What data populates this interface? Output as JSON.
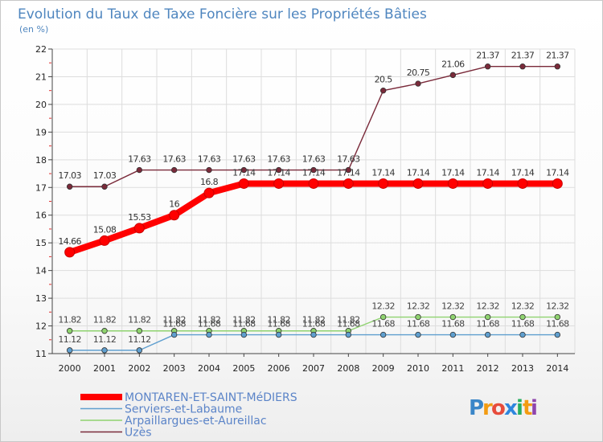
{
  "chart_data": {
    "type": "line",
    "title": "Evolution du Taux de Taxe Foncière sur les Propriétés Bâties",
    "subtitle": "(en %)",
    "xlabel": "",
    "ylabel": "",
    "ylim": [
      11,
      22
    ],
    "yticks": [
      "11",
      "12",
      "13",
      "14",
      "15",
      "16",
      "17",
      "18",
      "19",
      "20",
      "21",
      "22"
    ],
    "categories": [
      "2000",
      "2001",
      "2002",
      "2003",
      "2004",
      "2005",
      "2006",
      "2007",
      "2008",
      "2009",
      "2010",
      "2011",
      "2012",
      "2013",
      "2014"
    ],
    "grid": true,
    "legend_position": "bottom-left",
    "series": [
      {
        "name": "MONTAREN-ET-SAINT-MéDIERS",
        "color": "#ff0000",
        "values": [
          14.66,
          15.08,
          15.53,
          16,
          16.8,
          17.14,
          17.14,
          17.14,
          17.14,
          17.14,
          17.14,
          17.14,
          17.14,
          17.14,
          17.14
        ],
        "labels": [
          "14.66",
          "15.08",
          "15.53",
          "16",
          "16.8",
          "17.14",
          "17.14",
          "17.14",
          "17.14",
          "17.14",
          "17.14",
          "17.14",
          "17.14",
          "17.14",
          "17.14"
        ]
      },
      {
        "name": "Serviers-et-Labaume",
        "color": "#5f9fcf",
        "values": [
          11.12,
          11.12,
          11.12,
          11.68,
          11.68,
          11.68,
          11.68,
          11.68,
          11.68,
          11.68,
          11.68,
          11.68,
          11.68,
          11.68,
          11.68
        ],
        "labels": [
          "11.12",
          "11.12",
          "11.12",
          "11.68",
          "11.68",
          "11.68",
          "11.68",
          "11.68",
          "11.68",
          "11.68",
          "11.68",
          "11.68",
          "11.68",
          "11.68",
          "11.68"
        ]
      },
      {
        "name": "Arpaillargues-et-Aureillac",
        "color": "#8fd36f",
        "values": [
          11.82,
          11.82,
          11.82,
          11.82,
          11.82,
          11.82,
          11.82,
          11.82,
          11.82,
          12.32,
          12.32,
          12.32,
          12.32,
          12.32,
          12.32
        ],
        "labels": [
          "11.82",
          "11.82",
          "11.82",
          "11.82",
          "11.82",
          "11.82",
          "11.82",
          "11.82",
          "11.82",
          "12.32",
          "12.32",
          "12.32",
          "12.32",
          "12.32",
          "12.32"
        ]
      },
      {
        "name": "Uzès",
        "color": "#7a2a3a",
        "values": [
          17.03,
          17.03,
          17.63,
          17.63,
          17.63,
          17.63,
          17.63,
          17.63,
          17.63,
          20.5,
          20.75,
          21.06,
          21.37,
          21.37,
          21.37
        ],
        "labels": [
          "17.03",
          "17.03",
          "17.63",
          "17.63",
          "17.63",
          "17.63",
          "17.63",
          "17.63",
          "17.63",
          "20.5",
          "20.75",
          "21.06",
          "21.37",
          "21.37",
          "21.37"
        ]
      }
    ]
  },
  "logo": {
    "text": "Proxiti",
    "letters": [
      "P",
      "r",
      "o",
      "x",
      "i",
      "t",
      "i"
    ],
    "colors": [
      "#3a86c8",
      "#f39c12",
      "#e74c3c",
      "#2e86de",
      "#27ae60",
      "#f39c12",
      "#8e44ad"
    ]
  }
}
